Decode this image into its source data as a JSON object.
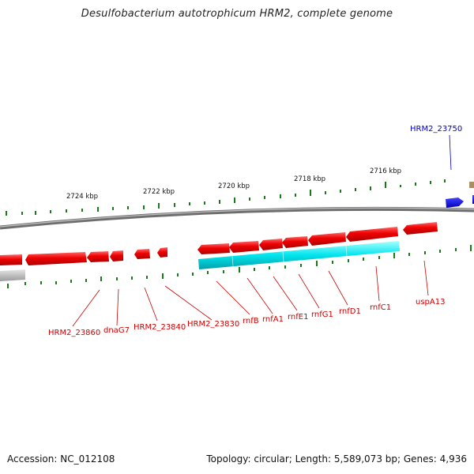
{
  "title": "Desulfobacterium autotrophicum HRM2, complete genome",
  "footer": {
    "accession": "Accession: NC_012108",
    "summary": "Topology: circular; Length: 5,589,073 bp; Genes: 4,936"
  },
  "colors": {
    "backbone": "#808080",
    "gene_forward": "#0000ee",
    "gene_reverse": "#ee0000",
    "operon": "#00e5ee",
    "gc_skew": "#1a7a1a",
    "label_forward": "#0000cc",
    "label_reverse": "#cc0000"
  },
  "scale_labels": [
    "2724 kbp",
    "2722 kbp",
    "2720 kbp",
    "2718 kbp",
    "2716 kbp"
  ],
  "forward_genes": [
    "HRM2_23750"
  ],
  "reverse_genes": [
    "HRM2_23860",
    "dnaG7",
    "HRM2_23840",
    "HRM2_23830",
    "rnfB",
    "rnfA1",
    "rnfE1",
    "rnfG1",
    "rnfD1",
    "rnfC1",
    "uspA13"
  ]
}
